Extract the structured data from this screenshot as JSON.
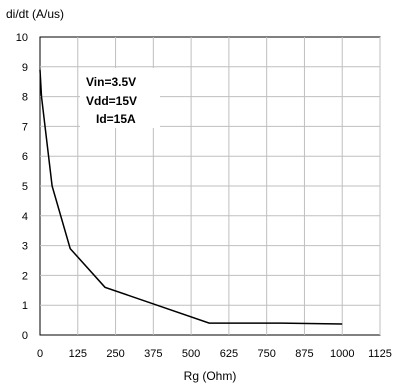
{
  "chart_data": {
    "type": "line",
    "title": "",
    "ylabel": "di/dt (A/us)",
    "xlabel": "Rg (Ohm)",
    "xlim": [
      0,
      1125
    ],
    "ylim": [
      0,
      10
    ],
    "x_ticks": [
      "0",
      "125",
      "250",
      "375",
      "500",
      "625",
      "750",
      "875",
      "1000",
      "1125"
    ],
    "y_ticks": [
      "0",
      "1",
      "2",
      "3",
      "4",
      "5",
      "6",
      "7",
      "8",
      "9",
      "10"
    ],
    "grid": true,
    "series": [
      {
        "x": [
          0,
          5,
          40,
          100,
          215,
          560,
          800,
          1000
        ],
        "y": [
          8.9,
          8.0,
          5.0,
          2.9,
          1.6,
          0.4,
          0.4,
          0.37
        ]
      }
    ],
    "annotations": [
      "Vin=3.5V",
      "Vdd=15V",
      "Id=15A"
    ],
    "colors": {
      "line": "#000000",
      "grid": "#bfbfbf"
    }
  }
}
